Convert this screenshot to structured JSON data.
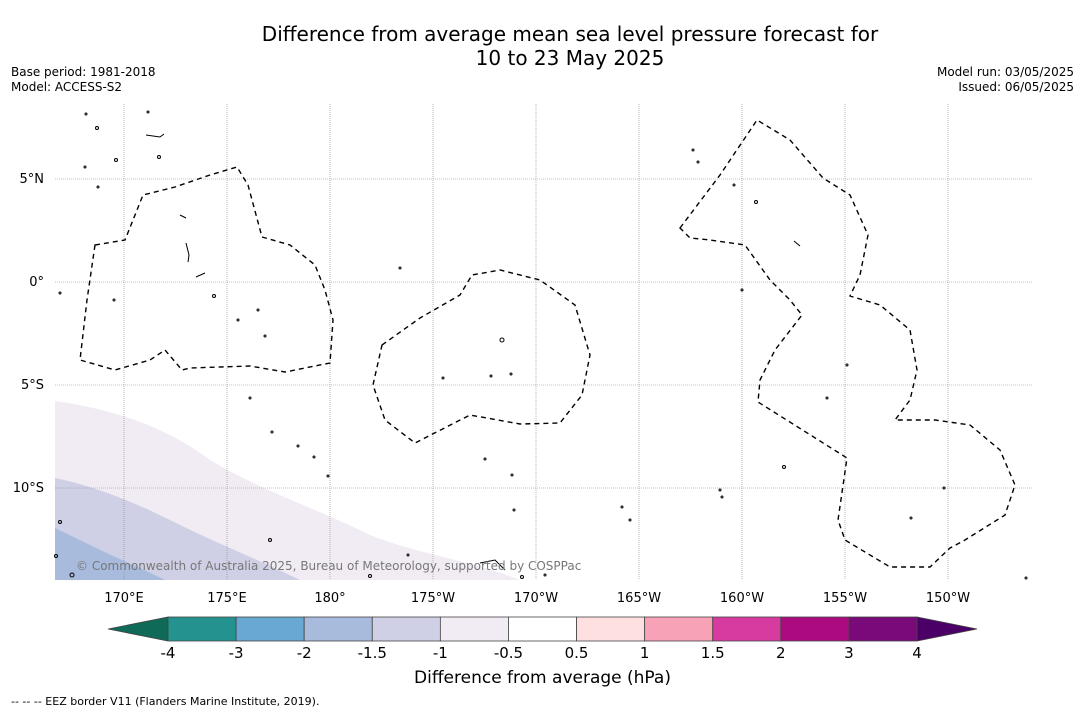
{
  "title": {
    "line1": "Difference from average mean sea level pressure forecast for",
    "line2": "10 to 23 May 2025"
  },
  "meta": {
    "base_period": "Base period: 1981-2018",
    "model": "Model: ACCESS-S2",
    "model_run": "Model run: 03/05/2025",
    "issued": "Issued: 06/05/2025"
  },
  "map": {
    "lon_labels": [
      "170°E",
      "175°E",
      "180°",
      "175°W",
      "170°W",
      "165°W",
      "160°W",
      "155°W",
      "150°W"
    ],
    "lat_labels": [
      "5°N",
      "0°",
      "5°S",
      "10°S"
    ],
    "copyright": "© Commonwealth of Australia 2025, Bureau of Meteorology, supported by COSPPac",
    "fill_colors": {
      "shade1": "#f1ecf3",
      "shade2": "#cfd0e5",
      "shade3": "#a8bbdc"
    }
  },
  "colorbar": {
    "label": "Difference from average (hPa)",
    "ticks": [
      "-4",
      "-3",
      "-2",
      "-1.5",
      "-1",
      "-0.5",
      "0.5",
      "1",
      "1.5",
      "2",
      "3",
      "4"
    ],
    "colors": [
      "#24938f",
      "#68a8d2",
      "#a8bbdc",
      "#cfd0e5",
      "#f1ecf3",
      "#ffffff",
      "#fde0df",
      "#f7a2b6",
      "#d83ba0",
      "#ab0b7f",
      "#7a0979"
    ],
    "low_extend_color": "#0f6b58",
    "high_extend_color": "#4a0066"
  },
  "footnote": "--  --  -- EEZ border V11 (Flanders Marine Institute, 2019)."
}
